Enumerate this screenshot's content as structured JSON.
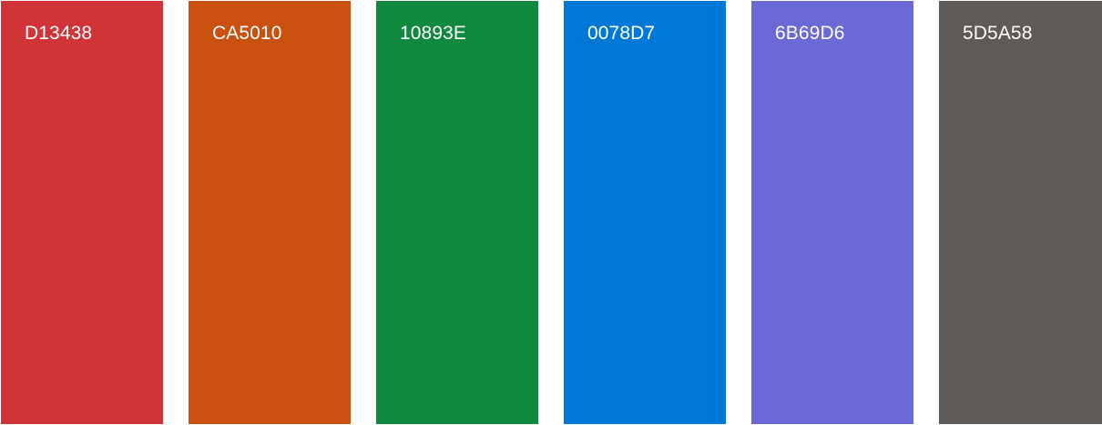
{
  "swatches": [
    {
      "label": "D13438",
      "color": "#D13438"
    },
    {
      "label": "CA5010",
      "color": "#CA5010"
    },
    {
      "label": "10893E",
      "color": "#10893E"
    },
    {
      "label": "0078D7",
      "color": "#0078D7"
    },
    {
      "label": "6B69D6",
      "color": "#6B69D6"
    },
    {
      "label": "5D5A58",
      "color": "#5D5A58"
    }
  ]
}
